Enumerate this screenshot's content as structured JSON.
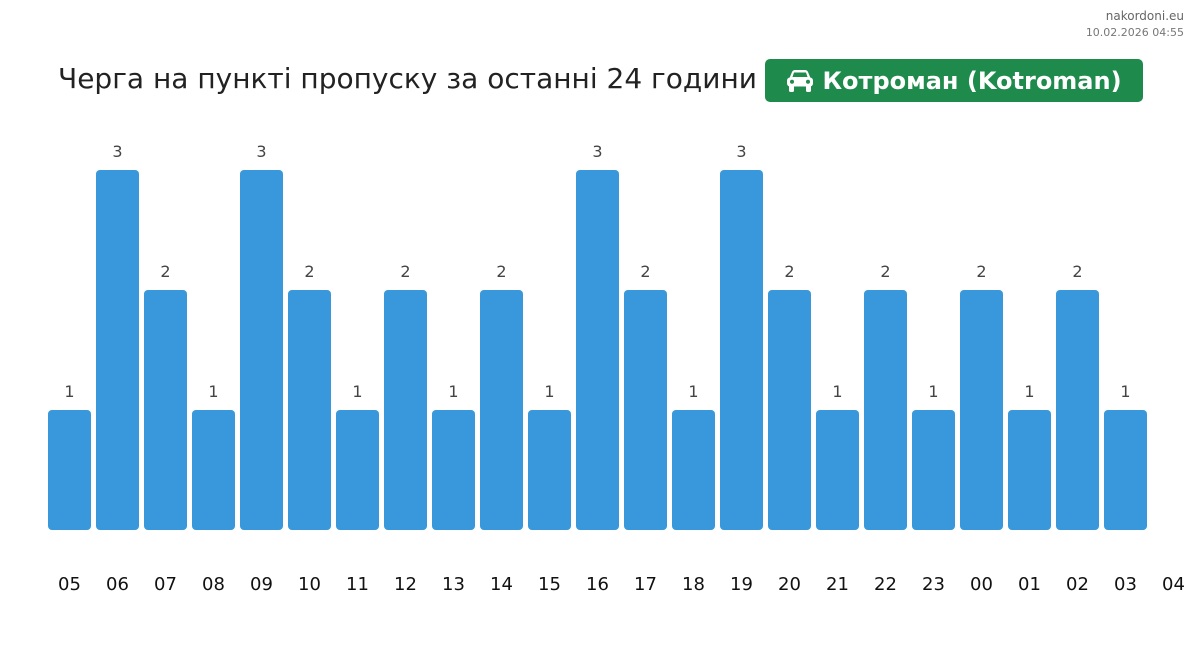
{
  "header": {
    "site": "nakordoni.eu",
    "timestamp": "10.02.2026 04:55",
    "title": "Черга на пункті пропуску за останні 24 години",
    "badge_text": "Котроман (Kotroman)",
    "badge_icon": "car-icon",
    "badge_color": "#1e8a4c"
  },
  "chart_data": {
    "type": "bar",
    "title": "Черга на пункті пропуску за останні 24 години",
    "xlabel": "",
    "ylabel": "",
    "categories": [
      "05",
      "06",
      "07",
      "08",
      "09",
      "10",
      "11",
      "12",
      "13",
      "14",
      "15",
      "16",
      "17",
      "18",
      "19",
      "20",
      "21",
      "22",
      "23",
      "00",
      "01",
      "02",
      "03"
    ],
    "values": [
      1,
      3,
      2,
      1,
      3,
      2,
      1,
      2,
      1,
      2,
      1,
      3,
      2,
      1,
      3,
      2,
      1,
      2,
      1,
      2,
      1,
      2,
      1
    ],
    "x_tick_labels": [
      "05",
      "06",
      "07",
      "08",
      "09",
      "10",
      "11",
      "12",
      "13",
      "14",
      "15",
      "16",
      "17",
      "18",
      "19",
      "20",
      "21",
      "22",
      "23",
      "00",
      "01",
      "02",
      "03",
      "04"
    ],
    "ylim": [
      0,
      3
    ],
    "bar_color": "#3898db",
    "data_labels": true,
    "grid": false,
    "legend": "none"
  }
}
